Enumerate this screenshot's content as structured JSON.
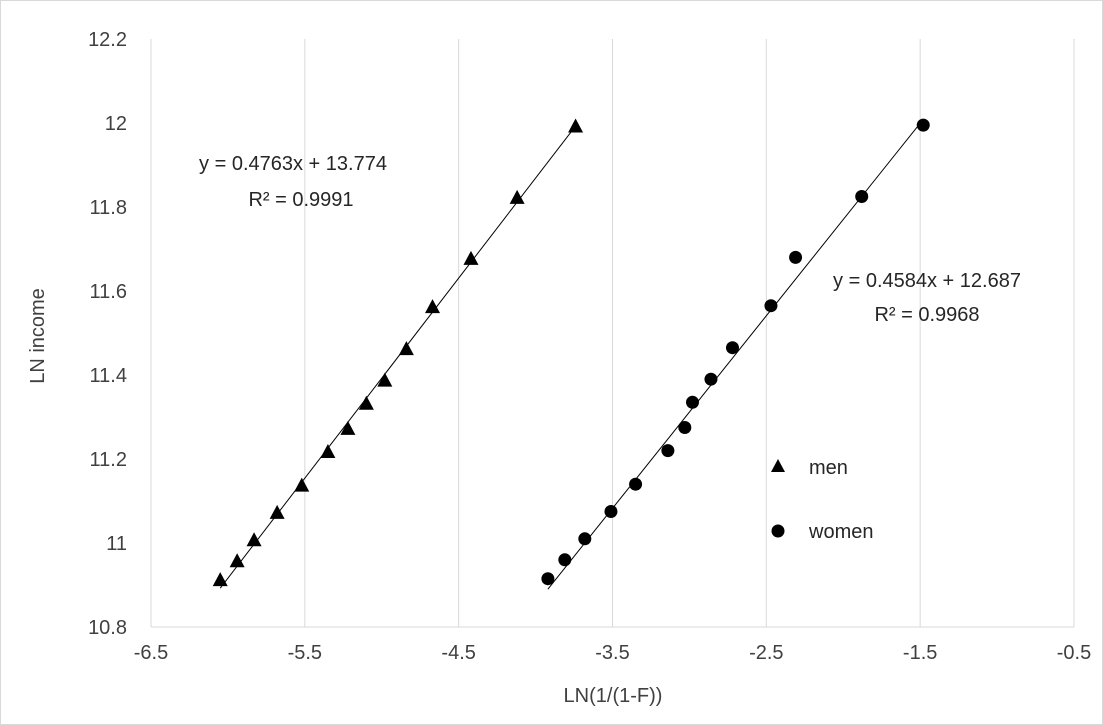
{
  "chart_data": {
    "type": "scatter",
    "title": "",
    "xlabel": "LN(1/(1-F))",
    "ylabel": "LN income",
    "xlim": [
      -6.5,
      -0.5
    ],
    "ylim": [
      10.8,
      12.2
    ],
    "x_ticks": [
      -6.5,
      -5.5,
      -4.5,
      -3.5,
      -2.5,
      -1.5,
      -0.5
    ],
    "x_tick_labels": [
      "-6.5",
      "-5.5",
      "-4.5",
      "-3.5",
      "-2.5",
      "-1.5",
      "-0.5"
    ],
    "y_ticks": [
      10.8,
      11.0,
      11.2,
      11.4,
      11.6,
      11.8,
      12.0,
      12.2
    ],
    "y_tick_labels": [
      "10.8",
      "11",
      "11.2",
      "11.4",
      "11.6",
      "11.8",
      "12",
      "12.2"
    ],
    "grid": "vertical",
    "legend_position": "right",
    "series": [
      {
        "name": "men",
        "marker": "triangle",
        "color": "#000000",
        "x": [
          -6.05,
          -5.94,
          -5.83,
          -5.68,
          -5.52,
          -5.35,
          -5.22,
          -5.1,
          -4.98,
          -4.84,
          -4.67,
          -4.42,
          -4.12,
          -3.74
        ],
        "y": [
          10.91,
          10.955,
          11.005,
          11.07,
          11.135,
          11.215,
          11.27,
          11.33,
          11.385,
          11.46,
          11.56,
          11.675,
          11.82,
          11.99
        ],
        "trendline": {
          "slope": 0.4763,
          "intercept": 13.774,
          "x_range": [
            -6.05,
            -3.74
          ]
        },
        "equation": "y = 0.4763x + 13.774",
        "r_squared": "R² = 0.9991"
      },
      {
        "name": "women",
        "marker": "circle",
        "color": "#000000",
        "x": [
          -3.92,
          -3.81,
          -3.68,
          -3.51,
          -3.35,
          -3.14,
          -3.03,
          -2.98,
          -2.86,
          -2.72,
          -2.47,
          -2.31,
          -1.88,
          -1.48
        ],
        "y": [
          10.915,
          10.96,
          11.01,
          11.075,
          11.14,
          11.22,
          11.275,
          11.335,
          11.39,
          11.465,
          11.565,
          11.68,
          11.825,
          11.995
        ],
        "trendline": {
          "slope": 0.4584,
          "intercept": 12.687,
          "x_range": [
            -3.92,
            -1.48
          ]
        },
        "equation": "y = 0.4584x + 12.687",
        "r_squared": "R² = 0.9968"
      }
    ]
  }
}
